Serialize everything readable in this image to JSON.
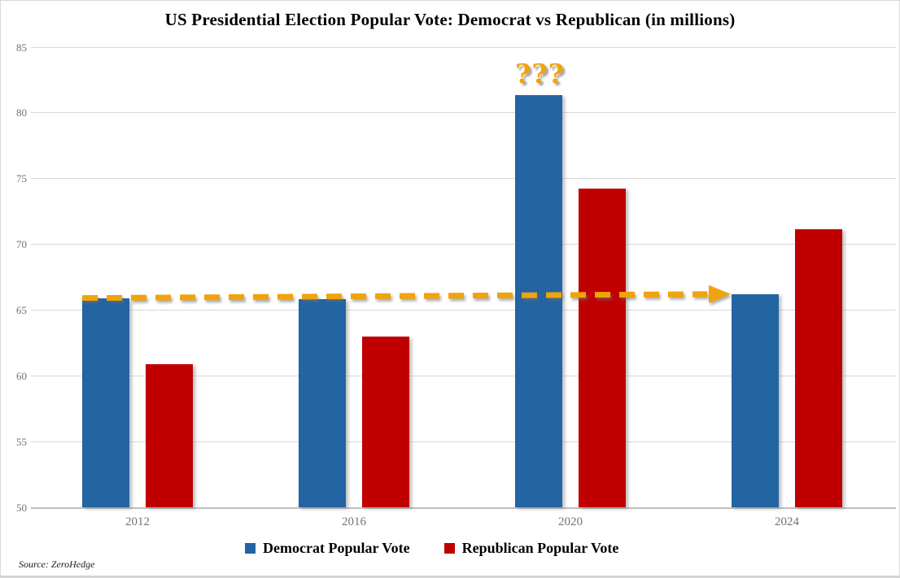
{
  "title": "US Presidential Election Popular Vote: Democrat vs Republican (in millions)",
  "source_note": "Source: ZeroHedge",
  "annotation": {
    "text": "???",
    "color": "#F0A30A",
    "attached_to": "2020 Democrat bar"
  },
  "legend": {
    "items": [
      {
        "label": "Democrat Popular Vote",
        "color": "#2364A2"
      },
      {
        "label": "Republican Popular Vote",
        "color": "#C00000"
      }
    ]
  },
  "chart_data": {
    "type": "bar",
    "categories": [
      "2012",
      "2016",
      "2020",
      "2024"
    ],
    "series": [
      {
        "name": "Democrat Popular Vote",
        "color": "#2364A2",
        "values": [
          65.9,
          65.8,
          81.3,
          66.2
        ]
      },
      {
        "name": "Republican Popular Vote",
        "color": "#C00000",
        "values": [
          60.9,
          63.0,
          74.2,
          71.1
        ]
      }
    ],
    "title": "US Presidential Election Popular Vote: Democrat vs Republican (in millions)",
    "xlabel": "",
    "ylabel": "",
    "ylim": [
      50,
      85
    ],
    "ytick_step": 5,
    "grid": "horizontal",
    "gridline_color": "#D9D9D9",
    "axis_label_color": "#6F7378",
    "legend_position": "bottom",
    "trend_arrow": {
      "style": "dashed",
      "color": "#F0A30A",
      "from_category": "2012",
      "from_value": 65.9,
      "to_category": "2024",
      "to_value": 66.2
    }
  }
}
